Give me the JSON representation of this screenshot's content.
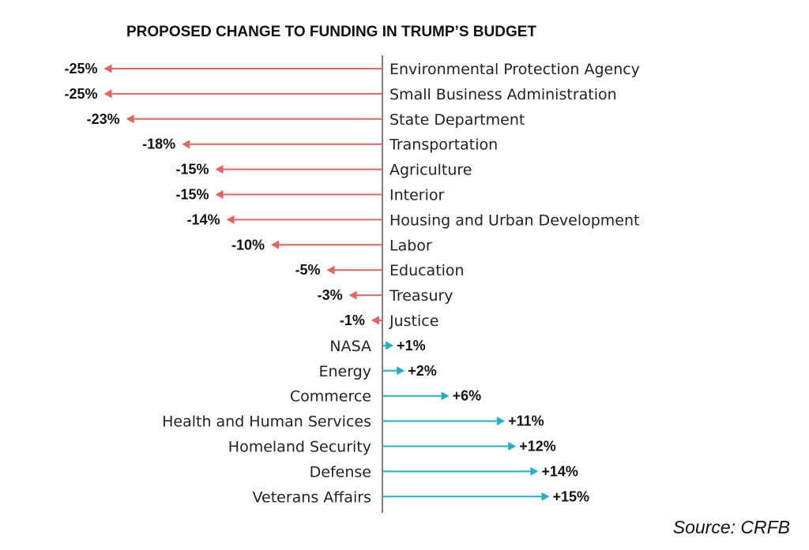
{
  "chart_data": {
    "type": "bar",
    "title": "PROPOSED CHANGE TO FUNDING IN TRUMP’S BUDGET",
    "source": "Source: CRFB",
    "colors": {
      "negative": "#e8625f",
      "positive": "#1cb3c8",
      "axis": "#555555"
    },
    "categories": [
      "Environmental Protection Agency",
      "Small Business Administration",
      "State Department",
      "Transportation",
      "Agriculture",
      "Interior",
      "Housing and Urban Development",
      "Labor",
      "Education",
      "Treasury",
      "Justice",
      "NASA",
      "Energy",
      "Commerce",
      "Health and Human Services",
      "Homeland Security",
      "Defense",
      "Veterans Affairs"
    ],
    "values": [
      -25,
      -25,
      -23,
      -18,
      -15,
      -15,
      -14,
      -10,
      -5,
      -3,
      -1,
      1,
      2,
      6,
      11,
      12,
      14,
      15
    ],
    "labels": [
      "-25%",
      "-25%",
      "-23%",
      "-18%",
      "-15%",
      "-15%",
      "-14%",
      "-10%",
      "-5%",
      "-3%",
      "-1%",
      "+1%",
      "+2%",
      "+6%",
      "+11%",
      "+12%",
      "+14%",
      "+15%"
    ],
    "unit": "%"
  }
}
